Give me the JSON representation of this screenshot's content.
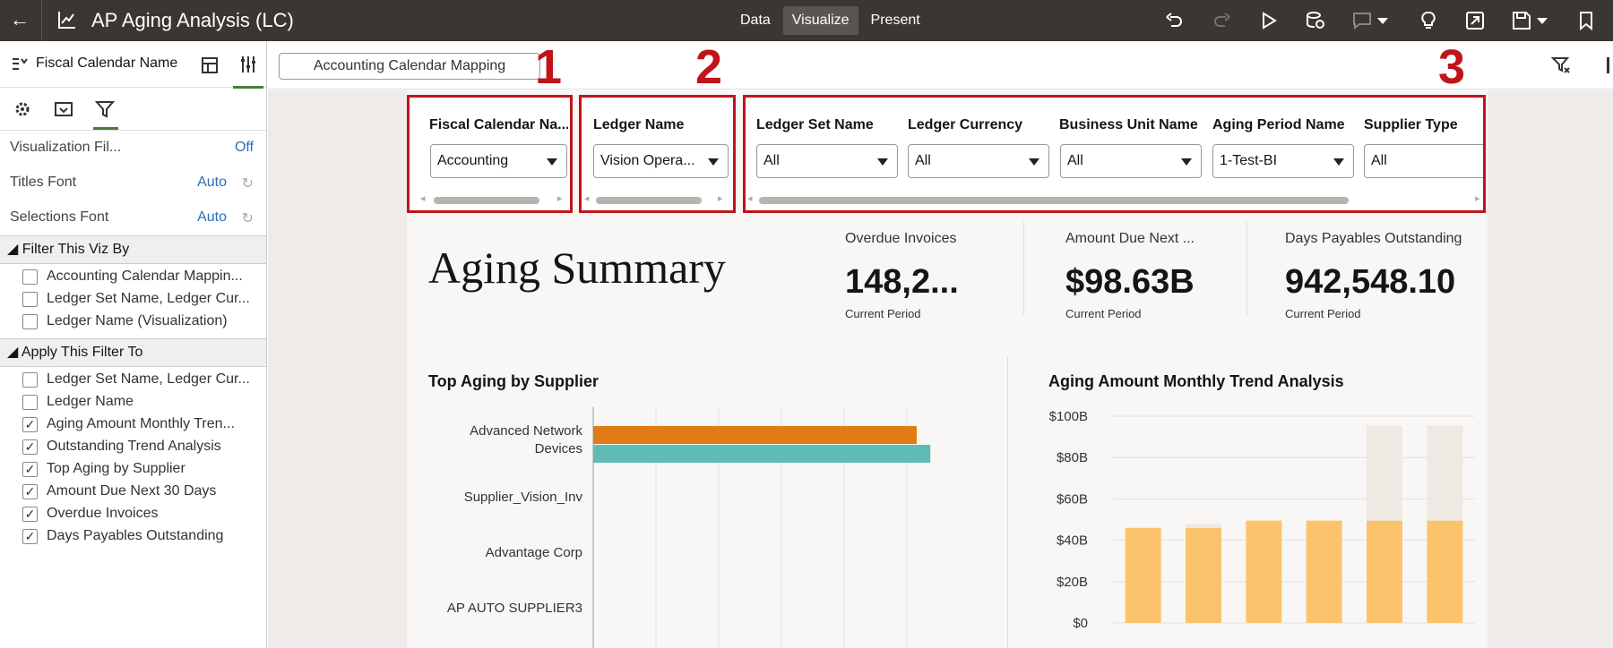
{
  "topbar": {
    "title": "AP Aging Analysis (LC)",
    "modes": [
      "Data",
      "Visualize",
      "Present"
    ],
    "active_mode": "Visualize"
  },
  "left_panel": {
    "header_label": "Fiscal Calendar Name",
    "properties": [
      {
        "key": "Visualization Fil...",
        "value": "Off"
      },
      {
        "key": "Titles Font",
        "value": "Auto"
      },
      {
        "key": "Selections Font",
        "value": "Auto"
      }
    ],
    "filter_section_title": "Filter This Viz By",
    "filter_items": [
      {
        "label": "Accounting Calendar Mappin...",
        "checked": false
      },
      {
        "label": "Ledger Set Name, Ledger Cur...",
        "checked": false
      },
      {
        "label": "Ledger Name (Visualization)",
        "checked": false
      }
    ],
    "apply_section_title": "Apply This Filter To",
    "apply_items": [
      {
        "label": "Ledger Set Name, Ledger Cur...",
        "checked": false
      },
      {
        "label": "Ledger Name",
        "checked": false
      },
      {
        "label": "Aging Amount Monthly Tren...",
        "checked": true
      },
      {
        "label": "Outstanding Trend Analysis",
        "checked": true
      },
      {
        "label": "Top Aging by Supplier",
        "checked": true
      },
      {
        "label": "Amount Due Next 30 Days",
        "checked": true
      },
      {
        "label": "Overdue Invoices",
        "checked": true
      },
      {
        "label": "Days Payables Outstanding",
        "checked": true
      }
    ]
  },
  "filterbar": {
    "pill": "Accounting Calendar Mapping"
  },
  "annotations": [
    "1",
    "2",
    "3"
  ],
  "filters": {
    "card1": [
      {
        "label": "Fiscal Calendar Na...",
        "value": "Accounting"
      }
    ],
    "card2": [
      {
        "label": "Ledger Name",
        "value": "Vision Opera..."
      }
    ],
    "card3": [
      {
        "label": "Ledger Set Name",
        "value": "All"
      },
      {
        "label": "Ledger Currency",
        "value": "All"
      },
      {
        "label": "Business Unit Name",
        "value": "All"
      },
      {
        "label": "Aging Period Name",
        "value": "1-Test-BI"
      },
      {
        "label": "Supplier Type",
        "value": "All"
      }
    ]
  },
  "summary": {
    "title": "Aging Summary",
    "kpis": [
      {
        "label": "Overdue Invoices",
        "value": "148,2...",
        "sub": "Current Period"
      },
      {
        "label": "Amount Due Next ...",
        "value": "$98.63B",
        "sub": "Current Period"
      },
      {
        "label": "Days Payables Outstanding",
        "value": "942,548.10",
        "sub": "Current Period"
      }
    ]
  },
  "colors": {
    "orange": "#e07b16",
    "teal": "#5fbbb3",
    "gold": "#fbc46c",
    "ghost": "#efe9e4",
    "annot": "#c0141a"
  },
  "chart_data": [
    {
      "type": "bar",
      "title": "Top Aging by Supplier",
      "orientation": "horizontal",
      "categories": [
        "Advanced Network Devices",
        "Supplier_Vision_Inv",
        "Advantage Corp",
        "AP AUTO SUPPLIER3"
      ],
      "series": [
        {
          "values": [
            0.95,
            0,
            0,
            0
          ]
        },
        {
          "values": [
            0.99,
            0,
            0,
            0
          ]
        }
      ]
    },
    {
      "type": "bar",
      "title": "Aging Amount Monthly Trend Analysis",
      "ytick_labels": [
        "$100B",
        "$80B",
        "$60B",
        "$40B",
        "$20B",
        "$0"
      ],
      "ylim": [
        0,
        100
      ],
      "series": [
        {
          "values": [
            46,
            46,
            49.5,
            49.5,
            49.5,
            49.5
          ]
        },
        {
          "values": [
            0,
            2,
            0,
            0,
            46,
            46
          ]
        }
      ]
    }
  ]
}
